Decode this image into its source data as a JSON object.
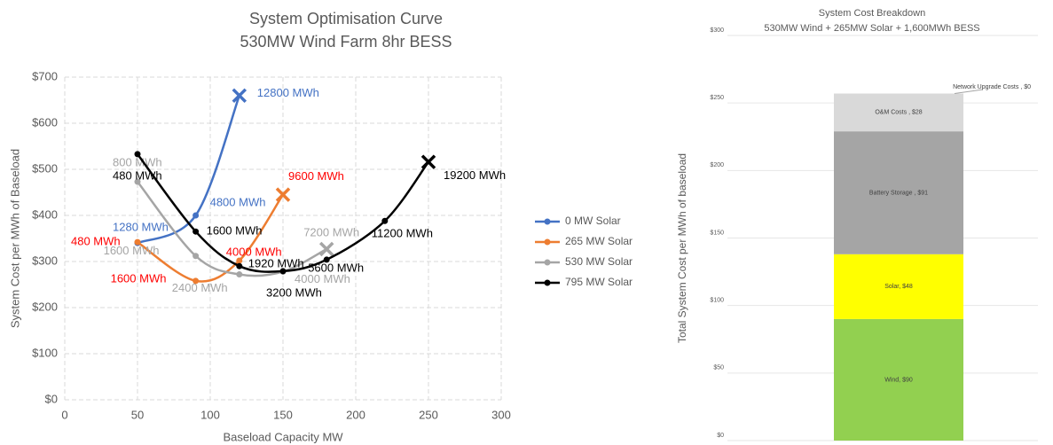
{
  "chart_data": [
    {
      "type": "line",
      "title": "System Optimisation Curve",
      "subtitle": "530MW Wind Farm 8hr BESS",
      "x_label": "Baseload Capacity MW",
      "y_label": "System Cost per MWh of Baseload",
      "xlim": [
        0,
        300
      ],
      "xticks": [
        0,
        50,
        100,
        150,
        200,
        250,
        300
      ],
      "ylim": [
        0,
        700
      ],
      "yticks": [
        {
          "value": 0,
          "label": "$0"
        },
        {
          "value": 100,
          "label": "$100"
        },
        {
          "value": 200,
          "label": "$200"
        },
        {
          "value": 300,
          "label": "$300"
        },
        {
          "value": 400,
          "label": "$400"
        },
        {
          "value": 500,
          "label": "$500"
        },
        {
          "value": 600,
          "label": "$600"
        },
        {
          "value": 700,
          "label": "$700"
        }
      ],
      "grid": true,
      "smooth": true,
      "legend": "right",
      "end_marker": "x",
      "series": [
        {
          "name": "0 MW Solar",
          "color": "#4472c4",
          "label_color": "#4472c4",
          "x": [
            50,
            90,
            120
          ],
          "values": [
            340,
            400,
            660
          ],
          "labels": [
            "1280 MWh",
            "4800 MWh",
            "12800 MWh"
          ]
        },
        {
          "name": "265 MW Solar",
          "color": "#ed7d31",
          "label_color": "#ff0000",
          "x": [
            50,
            90,
            120,
            150
          ],
          "values": [
            342,
            258,
            302,
            445
          ],
          "labels": [
            "480 MWh",
            "1600 MWh",
            "4000 MWh",
            "9600 MWh"
          ]
        },
        {
          "name": "530 MW Solar",
          "color": "#a5a5a5",
          "label_color": "#a5a5a5",
          "x": [
            50,
            90,
            120,
            150,
            180
          ],
          "values": [
            473,
            312,
            272,
            278,
            327
          ],
          "labels": [
            "800 MWh",
            "1600 MWh",
            "2400 MWh",
            "4000 MWh",
            "7200 MWh"
          ]
        },
        {
          "name": "795 MW Solar",
          "color": "#000000",
          "label_color": "#000000",
          "x": [
            50,
            90,
            120,
            150,
            180,
            220,
            250
          ],
          "values": [
            533,
            365,
            290,
            279,
            304,
            388,
            516
          ],
          "labels": [
            "480 MWh",
            "1600 MWh",
            "1920 MWh",
            "3200 MWh",
            "5600 MWh",
            "11200 MWh",
            "19200 MWh"
          ]
        }
      ]
    },
    {
      "type": "stacked-bar",
      "title": "System Cost Breakdown",
      "subtitle": "530MW Wind + 265MW Solar + 1,600MWh BESS",
      "y_label": "Total System Cost per MWh of baseload",
      "ylim": [
        0,
        300
      ],
      "yticks": [
        {
          "value": 0,
          "label": "$0"
        },
        {
          "value": 50,
          "label": "$50"
        },
        {
          "value": 100,
          "label": "$100"
        },
        {
          "value": 150,
          "label": "$150"
        },
        {
          "value": 200,
          "label": "$200"
        },
        {
          "value": 250,
          "label": "$250"
        },
        {
          "value": 300,
          "label": "$300"
        }
      ],
      "grid": true,
      "series": [
        {
          "color": "#92d050",
          "values": [
            90
          ],
          "value_labels": [
            "Wind, $90"
          ]
        },
        {
          "color": "#ffff00",
          "values": [
            48
          ],
          "value_labels": [
            "Solar, $48"
          ]
        },
        {
          "color": "#a5a5a5",
          "values": [
            91
          ],
          "value_labels": [
            "Battery Storage , $91"
          ]
        },
        {
          "color": "#d9d9d9",
          "values": [
            28
          ],
          "value_labels": [
            "O&M Costs , $28"
          ]
        },
        {
          "color": "#bfbfbf",
          "values": [
            0
          ],
          "value_labels": [
            "Network Upgrade Costs , $0"
          ]
        }
      ]
    }
  ]
}
